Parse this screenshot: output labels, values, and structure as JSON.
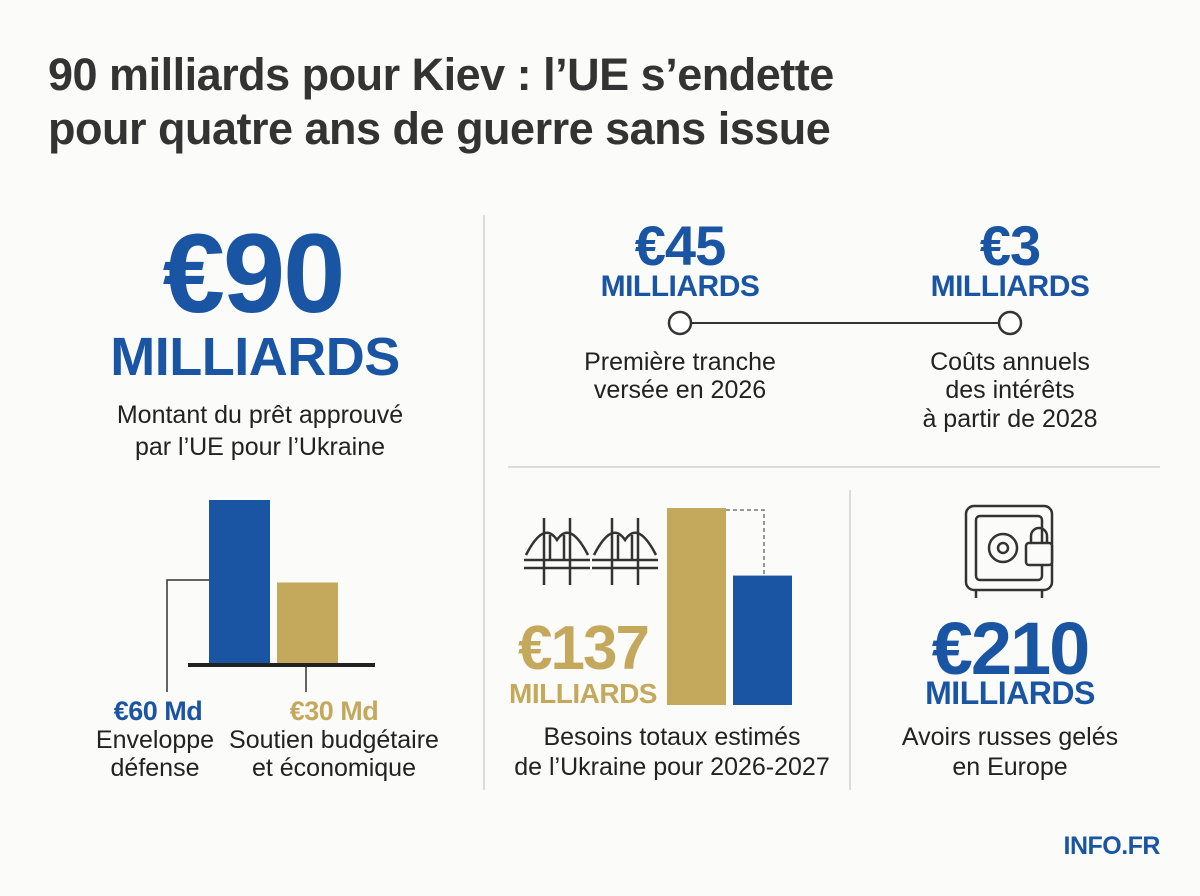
{
  "header": {
    "title_lines": [
      "90 milliards pour Kiev : l’UE s’endette",
      "pour quatre ans de guerre sans issue"
    ]
  },
  "loan": {
    "amount": "€90",
    "unit": "MILLIARDS",
    "description": [
      "Montant du prêt approuvé",
      "par l’UE pour l’Ukraine"
    ]
  },
  "split_chart": {
    "type": "bar",
    "bars": [
      {
        "value": 60,
        "value_label": "€60 Md",
        "color": "#1a55a3",
        "label": [
          "Enveloppe",
          "défense"
        ]
      },
      {
        "value": 30,
        "value_label": "€30 Md",
        "color": "#c4a95c",
        "label": [
          "Soutien budgétaire",
          "et économique"
        ]
      }
    ]
  },
  "timeline": {
    "points": [
      {
        "amount": "€45",
        "unit": "MILLIARDS",
        "caption": [
          "Première tranche",
          "versée en 2026"
        ]
      },
      {
        "amount": "€3",
        "unit": "MILLIARDS",
        "caption": [
          "Coûts annuels",
          "des intérêts",
          "à partir de 2028"
        ]
      }
    ]
  },
  "needs": {
    "type": "bar",
    "bars": [
      {
        "value": 137,
        "value_label": "€137",
        "color": "#c4a95c"
      },
      {
        "value": 90,
        "color": "#1a55a3"
      }
    ],
    "unit": "MILLIARDS",
    "caption": [
      "Besoins totaux estimés",
      "de l’Ukraine pour 2026-2027"
    ]
  },
  "assets": {
    "amount": "€210",
    "unit": "MILLIARDS",
    "caption": [
      "Avoirs russes gelés",
      "en Europe"
    ]
  },
  "footer": {
    "brand": "INFO.FR"
  }
}
